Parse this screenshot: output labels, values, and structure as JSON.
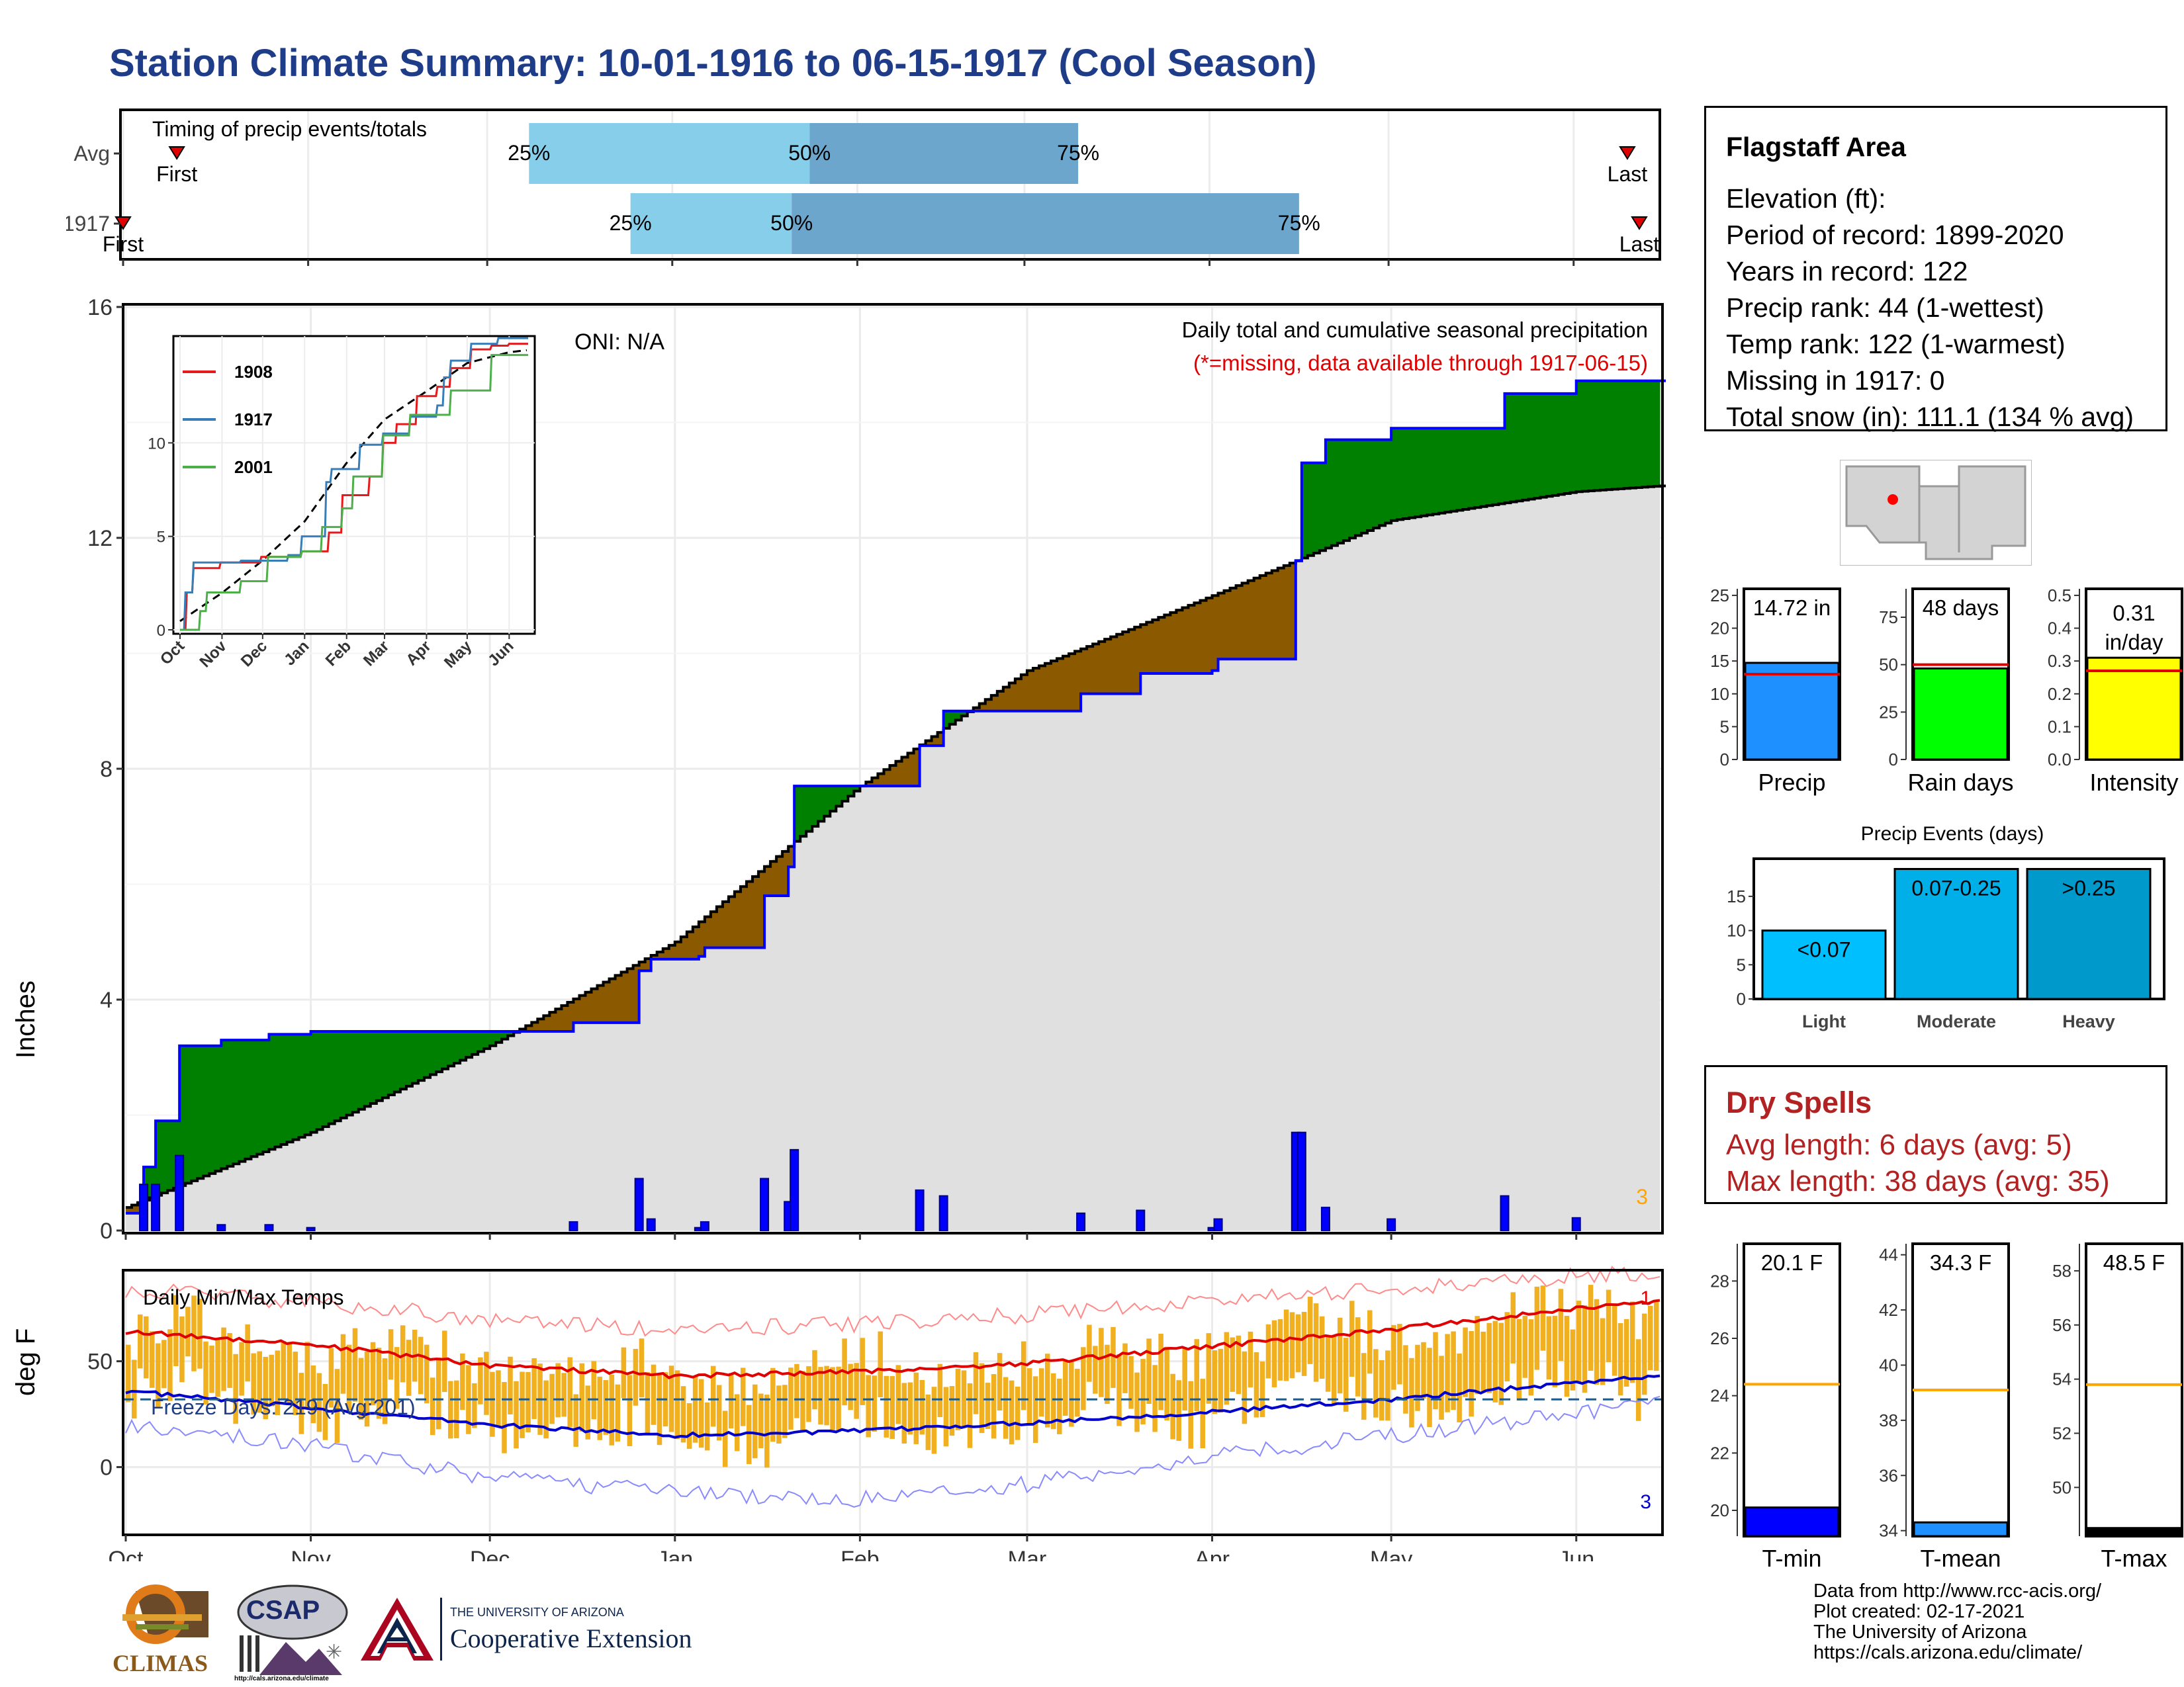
{
  "title": "Station Climate Summary: 10-01-1916 to 06-15-1917 (Cool Season)",
  "timing": {
    "title": "Timing of precip events/totals",
    "rows": [
      {
        "label": "Avg",
        "first": "First",
        "last": "Last",
        "p25": "25%",
        "p50": "50%",
        "p75": "75%",
        "first_date": "1916-10-10",
        "p25_date": "1916-12-08",
        "p50_date": "1917-01-24",
        "p75_date": "1917-03-10",
        "last_date": "1917-06-10"
      },
      {
        "label": "1917",
        "first": "First",
        "last": "Last",
        "p25": "25%",
        "p50": "50%",
        "p75": "75%",
        "first_date": "1916-10-01",
        "p25_date": "1916-12-25",
        "p50_date": "1917-01-21",
        "p75_date": "1917-04-16",
        "last_date": "1917-06-12"
      }
    ]
  },
  "precip": {
    "ylabel": "Inches",
    "yticks": [
      "0",
      "4",
      "8",
      "12",
      "16"
    ],
    "caption1": "Daily total and cumulative seasonal precipitation",
    "caption2": "(*=missing, data available through 1917-06-15)",
    "oni": "ONI: N/A",
    "count_label": "3",
    "colors": {
      "above": "#008000",
      "below": "#8b5a00",
      "normal_fill": "#e0e0e0",
      "year_line": "#0000ff",
      "daily": "#0000ff"
    }
  },
  "months": [
    "Oct",
    "Nov",
    "Dec",
    "Jan",
    "Feb",
    "Mar",
    "Apr",
    "May",
    "Jun"
  ],
  "inset": {
    "legend": [
      {
        "name": "1908",
        "color": "#e41a1c"
      },
      {
        "name": "1917",
        "color": "#377eb8"
      },
      {
        "name": "2001",
        "color": "#4daf4a"
      }
    ],
    "yticks": [
      "0",
      "5",
      "10"
    ]
  },
  "temps": {
    "title": "Daily Min/Max Temps",
    "ylabel": "deg F",
    "yticks": [
      "0",
      "50"
    ],
    "freeze": "Freeze Days: 219 (Avg:201)",
    "count_top": "1",
    "count_bottom": "3",
    "colors": {
      "bars": "#f0b020",
      "max_normal": "#e00000",
      "min_normal": "#0000cc"
    }
  },
  "station": {
    "name": "Flagstaff Area",
    "lines": [
      "Elevation (ft):",
      "Period of record: 1899-2020",
      "Years in record: 122",
      "Precip rank: 44 (1-wettest)",
      "Temp rank: 122 (1-warmest)",
      "Missing in 1917: 0",
      "Total snow (in): 111.1 (134 % avg)"
    ]
  },
  "season_bars": [
    {
      "label": "Precip",
      "value_text": "14.72 in",
      "yticks": [
        "0",
        "5",
        "10",
        "15",
        "20",
        "25"
      ],
      "color": "#1e90ff"
    },
    {
      "label": "Rain days",
      "value_text": "48 days",
      "yticks": [
        "0",
        "25",
        "50",
        "75"
      ],
      "color": "#00ff00"
    },
    {
      "label": "Intensity",
      "value_text": "0.31 in/day",
      "yticks": [
        "0.0",
        "0.1",
        "0.2",
        "0.3",
        "0.4",
        "0.5"
      ],
      "color": "#ffff00"
    }
  ],
  "events": {
    "title": "Precip Events (days)",
    "yticks": [
      "0",
      "5",
      "10",
      "15"
    ],
    "bars": [
      {
        "category": "Light",
        "label": "<0.07",
        "color": "#00bfff"
      },
      {
        "category": "Moderate",
        "label": "0.07-0.25",
        "color": "#00aee8"
      },
      {
        "category": "Heavy",
        "label": ">0.25",
        "color": "#0099cc"
      }
    ]
  },
  "dry": {
    "title": "Dry Spells",
    "avg": "Avg length: 6 days (avg: 5)",
    "max": "Max length: 38 days (avg: 35)"
  },
  "temp_bars": [
    {
      "label": "T-min",
      "value_text": "20.1 F",
      "yticks": [
        "20",
        "22",
        "24",
        "26",
        "28"
      ],
      "color": "#0000ff"
    },
    {
      "label": "T-mean",
      "value_text": "34.3 F",
      "yticks": [
        "34",
        "36",
        "38",
        "40",
        "42",
        "44"
      ],
      "color": "#1e90ff"
    },
    {
      "label": "T-max",
      "value_text": "48.5 F",
      "yticks": [
        "50",
        "52",
        "54",
        "56",
        "58"
      ],
      "color": "#000000"
    }
  ],
  "footer": [
    "Data from http://www.rcc-acis.org/",
    "Plot created: 02-17-2021",
    "The University of Arizona",
    "https://cals.arizona.edu/climate/"
  ],
  "logos": {
    "climas": "CLIMAS",
    "csap": "CSAP",
    "csap_url": "http://cals.arizona.edu/climate",
    "ua_small": "THE UNIVERSITY OF ARIZONA",
    "ua_large": "Cooperative Extension"
  },
  "chart_data": [
    {
      "type": "area",
      "title": "Daily total and cumulative seasonal precipitation",
      "ylabel": "Inches",
      "ylim": [
        0,
        16
      ],
      "x_start": "1916-10-01",
      "x_end": "1917-06-15",
      "grid": true,
      "series": [
        {
          "name": "1917",
          "x": [
            "1916-10-01",
            "1916-10-04",
            "1916-10-06",
            "1916-10-10",
            "1916-10-17",
            "1916-10-25",
            "1916-11-01",
            "1916-12-15",
            "1916-12-25",
            "1916-12-26",
            "1916-12-28",
            "1917-01-05",
            "1917-01-06",
            "1917-01-15",
            "1917-01-16",
            "1917-01-20",
            "1917-01-21",
            "1917-02-10",
            "1917-02-11",
            "1917-02-15",
            "1917-02-20",
            "1917-03-02",
            "1917-03-10",
            "1917-03-20",
            "1917-04-01",
            "1917-04-02",
            "1917-04-14",
            "1917-04-15",
            "1917-04-16",
            "1917-04-20",
            "1917-05-01",
            "1917-05-20",
            "1917-06-01",
            "1917-06-15"
          ],
          "values": [
            0.3,
            1.1,
            1.9,
            3.2,
            3.3,
            3.4,
            3.45,
            3.6,
            3.6,
            4.5,
            4.7,
            4.75,
            4.9,
            4.9,
            5.8,
            6.3,
            7.7,
            7.7,
            8.4,
            9.0,
            9.0,
            9.0,
            9.3,
            9.65,
            9.7,
            9.9,
            9.9,
            11.6,
            13.3,
            13.7,
            13.9,
            14.5,
            14.72,
            14.72
          ]
        },
        {
          "name": "Normal",
          "x": [
            "1916-10-01",
            "1916-11-01",
            "1916-12-01",
            "1917-01-01",
            "1917-02-01",
            "1917-03-01",
            "1917-04-01",
            "1917-05-01",
            "1917-06-01",
            "1917-06-15"
          ],
          "values": [
            0.4,
            1.7,
            3.2,
            5.0,
            7.7,
            9.7,
            11.0,
            12.3,
            12.8,
            12.9
          ]
        }
      ]
    },
    {
      "type": "line",
      "title": "Daily Min/Max Temps",
      "ylabel": "deg F",
      "x": [
        "1916-10-01",
        "1916-11-01",
        "1916-12-01",
        "1917-01-01",
        "1917-02-01",
        "1917-03-01",
        "1917-04-01",
        "1917-05-01",
        "1917-06-01",
        "1917-06-15"
      ],
      "series": [
        {
          "name": "Normal max",
          "values": [
            64,
            58,
            48,
            43,
            45,
            49,
            57,
            65,
            75,
            78
          ]
        },
        {
          "name": "Normal min",
          "values": [
            36,
            28,
            20,
            15,
            17,
            21,
            26,
            32,
            40,
            43
          ]
        },
        {
          "name": "Record max",
          "values": [
            84,
            78,
            70,
            64,
            68,
            72,
            78,
            84,
            90,
            92
          ]
        },
        {
          "name": "Record min",
          "values": [
            20,
            10,
            -5,
            -12,
            -15,
            -8,
            5,
            15,
            25,
            30
          ]
        }
      ],
      "freeze_line": 32
    },
    {
      "type": "bar",
      "categories": [
        "Precip",
        "Rain days",
        "Intensity"
      ],
      "values": [
        14.72,
        48,
        0.31
      ],
      "normals": [
        13.0,
        50,
        0.27
      ]
    },
    {
      "type": "bar",
      "title": "Precip Events (days)",
      "categories": [
        "Light",
        "Moderate",
        "Heavy"
      ],
      "values": [
        10,
        19,
        19
      ]
    },
    {
      "type": "bar",
      "categories": [
        "T-min",
        "T-mean",
        "T-max"
      ],
      "values": [
        20.1,
        34.3,
        48.5
      ],
      "normals": [
        24.4,
        39.1,
        53.8
      ]
    }
  ]
}
